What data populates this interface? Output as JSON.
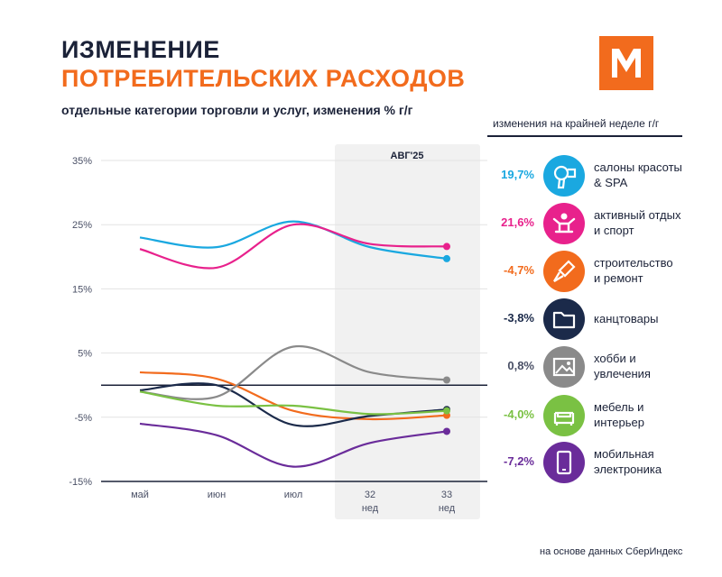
{
  "header": {
    "title_line1": "ИЗМЕНЕНИЕ",
    "title_line2": "ПОТРЕБИТЕЛЬСКИХ РАСХОДОВ",
    "subtitle": "отдельные категории торговли и услуг, изменения % г/г"
  },
  "logo": {
    "letter": "M",
    "color": "#f26b1d"
  },
  "legend_header": "изменения на крайней неделе г/г",
  "footer": "на основе данных СберИндекс",
  "chart_data": {
    "type": "line",
    "categories": [
      "май",
      "июн",
      "июл",
      "32\nнед",
      "33\nнед"
    ],
    "x_labels": [
      {
        "line1": "май",
        "line2": ""
      },
      {
        "line1": "июн",
        "line2": ""
      },
      {
        "line1": "июл",
        "line2": ""
      },
      {
        "line1": "32",
        "line2": "нед"
      },
      {
        "line1": "33",
        "line2": "нед"
      }
    ],
    "yticks": [
      {
        "value": 35,
        "label": "35%"
      },
      {
        "value": 25,
        "label": "25%"
      },
      {
        "value": 15,
        "label": "15%"
      },
      {
        "value": 5,
        "label": "5%"
      },
      {
        "value": -5,
        "label": "-5%"
      },
      {
        "value": -15,
        "label": "-15%"
      }
    ],
    "ylim": [
      -15,
      35
    ],
    "highlight": {
      "label": "АВГ'25",
      "from_index": 2.5,
      "to_index": 4.4
    },
    "zero_line": 0,
    "series": [
      {
        "name": "салоны красоты & SPA",
        "color": "#1aa8e0",
        "values": [
          23,
          21.5,
          25.5,
          21.5,
          19.7
        ],
        "last_label": "19,7%"
      },
      {
        "name": "активный отдых и спорт",
        "color": "#e8218c",
        "values": [
          21.2,
          18.3,
          25,
          22,
          21.6
        ],
        "last_label": "21,6%"
      },
      {
        "name": "строительство и ремонт",
        "color": "#f26b1d",
        "values": [
          2,
          1,
          -4,
          -5.3,
          -4.7
        ],
        "last_label": "-4,7%"
      },
      {
        "name": "канцтовары",
        "color": "#1b2a4a",
        "values": [
          -0.8,
          0,
          -6.2,
          -4.8,
          -3.8
        ],
        "last_label": "-3,8%"
      },
      {
        "name": "хобби и увлечения",
        "color": "#8a8a8a",
        "values": [
          -1,
          -1.8,
          6,
          2,
          0.8
        ],
        "last_label": "0,8%"
      },
      {
        "name": "мебель и интерьер",
        "color": "#7ac143",
        "values": [
          -1,
          -3.2,
          -3.2,
          -4.5,
          -4.0
        ],
        "last_label": "-4,0%"
      },
      {
        "name": "мобильная электроника",
        "color": "#6a2c9a",
        "values": [
          -6,
          -7.8,
          -12.7,
          -9,
          -7.2
        ],
        "last_label": "-7,2%"
      }
    ]
  },
  "legend": [
    {
      "value": "19,7%",
      "line1": "салоны красоты",
      "line2": "& SPA",
      "color": "#1aa8e0",
      "icon": "hair-dryer-icon"
    },
    {
      "value": "21,6%",
      "line1": "активный отдых",
      "line2": "и спорт",
      "color": "#e8218c",
      "icon": "sport-icon"
    },
    {
      "value": "-4,7%",
      "line1": "строительство",
      "line2": "и ремонт",
      "color": "#f26b1d",
      "icon": "paint-brush-icon"
    },
    {
      "value": "-3,8%",
      "line1": "канцтовары",
      "line2": "",
      "color": "#1b2a4a",
      "icon": "folder-icon"
    },
    {
      "value": "0,8%",
      "line1": "хобби и",
      "line2": "увлечения",
      "color": "#8a8a8a",
      "icon": "picture-icon"
    },
    {
      "value": "-4,0%",
      "line1": "мебель и",
      "line2": "интерьер",
      "color": "#7ac143",
      "icon": "sofa-icon"
    },
    {
      "value": "-7,2%",
      "line1": "мобильная",
      "line2": "электроника",
      "color": "#6a2c9a",
      "icon": "phone-icon"
    }
  ]
}
